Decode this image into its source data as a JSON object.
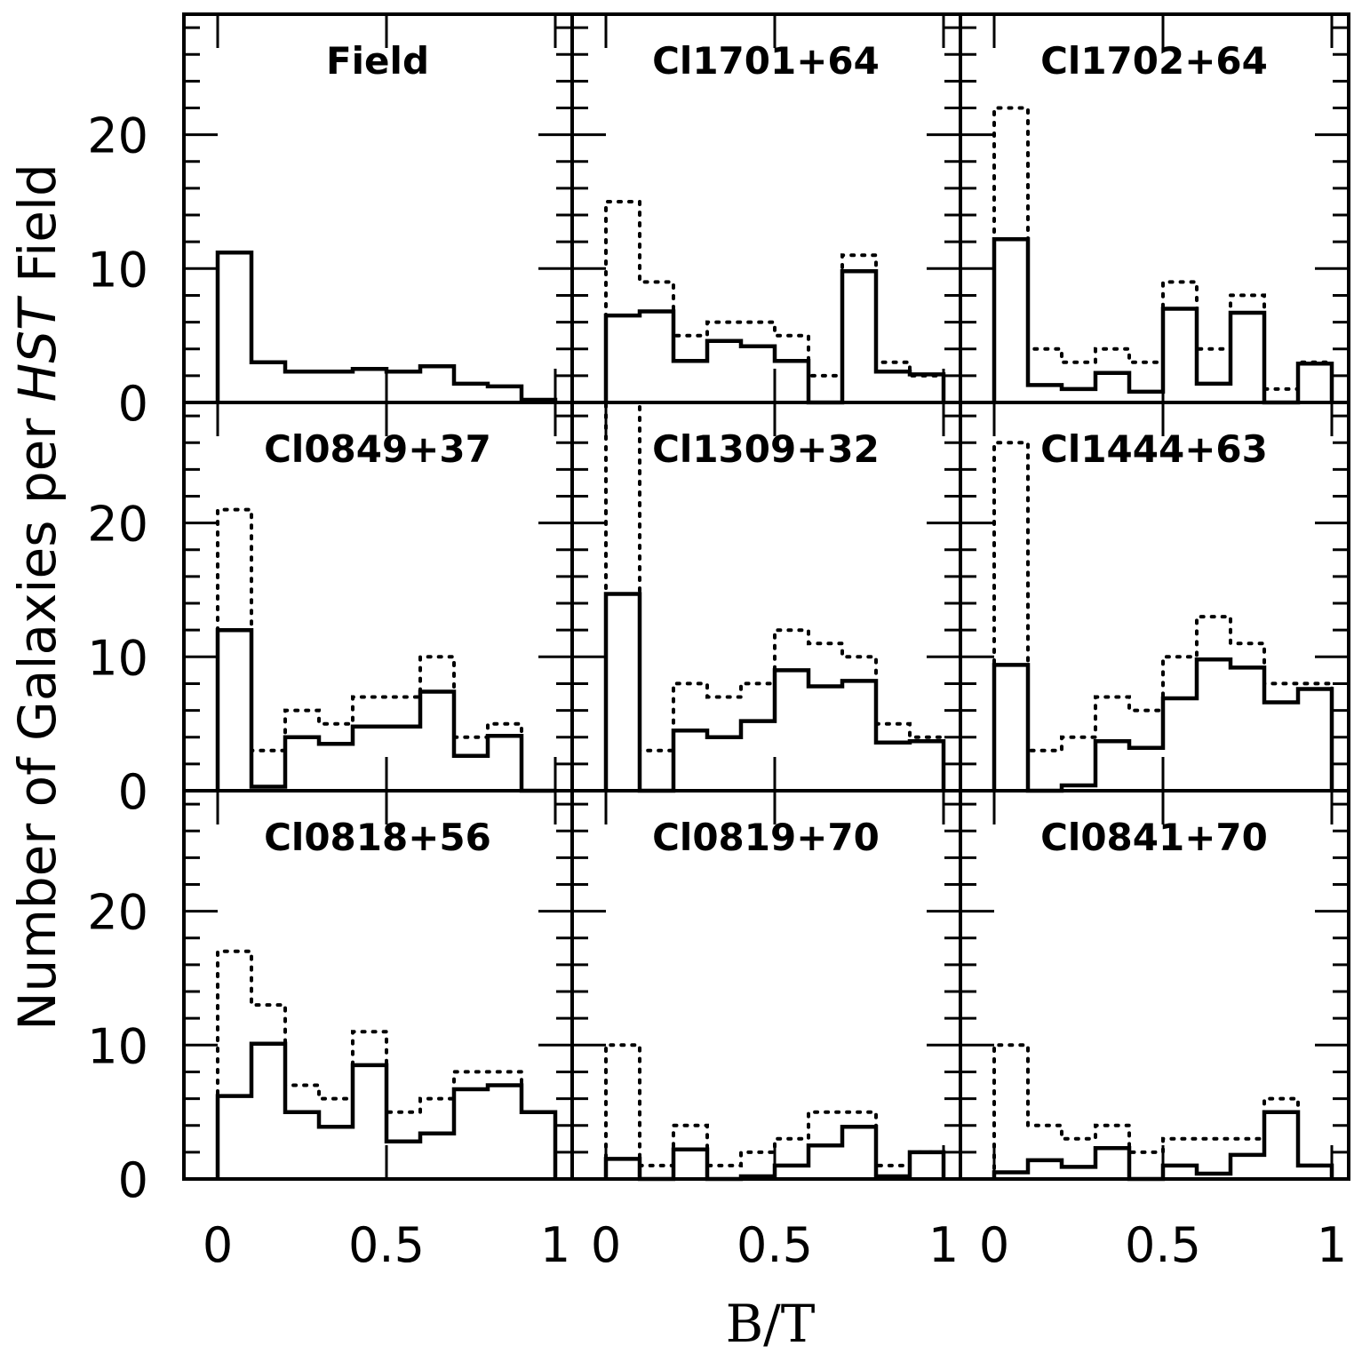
{
  "chart_data": {
    "type": "bar",
    "layout": "3x3 grid of step histograms, shared axes",
    "xlabel": "B/T",
    "ylabel": {
      "prefix": "Number of Galaxies per ",
      "italic": "HST",
      "suffix": " Field"
    },
    "xlim": [
      -0.1,
      1.05
    ],
    "ylim": [
      0,
      29
    ],
    "x_ticks": [
      0,
      0.5,
      1
    ],
    "x_tick_labels": [
      "0",
      "0.5",
      "1"
    ],
    "y_ticks": [
      0,
      10,
      20
    ],
    "y_tick_labels": [
      "0",
      "10",
      "20"
    ],
    "bin_edges": [
      0,
      0.1,
      0.2,
      0.3,
      0.4,
      0.5,
      0.6,
      0.7,
      0.8,
      0.9,
      1.0
    ],
    "series_styles": [
      "solid",
      "dotted"
    ],
    "panels": [
      {
        "title": "Field",
        "solid": [
          11.2,
          3.0,
          2.3,
          2.3,
          2.5,
          2.3,
          2.7,
          1.4,
          1.2,
          0.2
        ],
        "dotted": null
      },
      {
        "title": "Cl1701+64",
        "solid": [
          6.5,
          6.8,
          3.1,
          4.6,
          4.2,
          3.1,
          0,
          9.8,
          2.3,
          2.1
        ],
        "dotted": [
          15,
          9,
          5,
          6,
          6,
          5,
          2,
          11,
          3,
          2
        ]
      },
      {
        "title": "Cl1702+64",
        "solid": [
          12.2,
          1.3,
          1.0,
          2.2,
          0.8,
          7.0,
          1.4,
          6.7,
          0,
          2.9
        ],
        "dotted": [
          22,
          4,
          3,
          4,
          3,
          9,
          4,
          8,
          1,
          3
        ]
      },
      {
        "title": "Cl0849+37",
        "solid": [
          12,
          0.3,
          4.0,
          3.5,
          4.8,
          4.8,
          7.4,
          2.6,
          4.1,
          0
        ],
        "dotted": [
          21,
          3,
          6,
          5,
          7,
          7,
          10,
          4,
          5,
          0
        ]
      },
      {
        "title": "Cl1309+32",
        "solid": [
          14.7,
          0,
          4.5,
          4.0,
          5.2,
          9.0,
          7.8,
          8.2,
          3.6,
          3.7
        ],
        "dotted": [
          29,
          3,
          8,
          7,
          8,
          12,
          11,
          10,
          5,
          4
        ]
      },
      {
        "title": "Cl1444+63",
        "solid": [
          9.4,
          0,
          0.4,
          3.7,
          3.2,
          6.9,
          9.8,
          9.2,
          6.6,
          7.6
        ],
        "dotted": [
          26,
          3,
          4,
          7,
          6,
          10,
          13,
          11,
          8,
          8
        ]
      },
      {
        "title": "Cl0818+56",
        "solid": [
          6.2,
          10.1,
          5.0,
          3.9,
          8.5,
          2.8,
          3.4,
          6.7,
          7.0,
          5.0
        ],
        "dotted": [
          17,
          13,
          7,
          6,
          11,
          5,
          6,
          8,
          8,
          5
        ]
      },
      {
        "title": "Cl0819+70",
        "solid": [
          1.5,
          0,
          2.2,
          0,
          0.2,
          1.0,
          2.5,
          3.9,
          0.2,
          2.0
        ],
        "dotted": [
          10,
          1,
          4,
          1,
          2,
          3,
          5,
          5,
          1,
          2
        ]
      },
      {
        "title": "Cl0841+70",
        "solid": [
          0.5,
          1.4,
          0.9,
          2.3,
          0,
          1.0,
          0.4,
          1.8,
          5.0,
          1.0
        ],
        "dotted": [
          10,
          4,
          3,
          4,
          2,
          3,
          3,
          3,
          6,
          1
        ]
      }
    ]
  }
}
